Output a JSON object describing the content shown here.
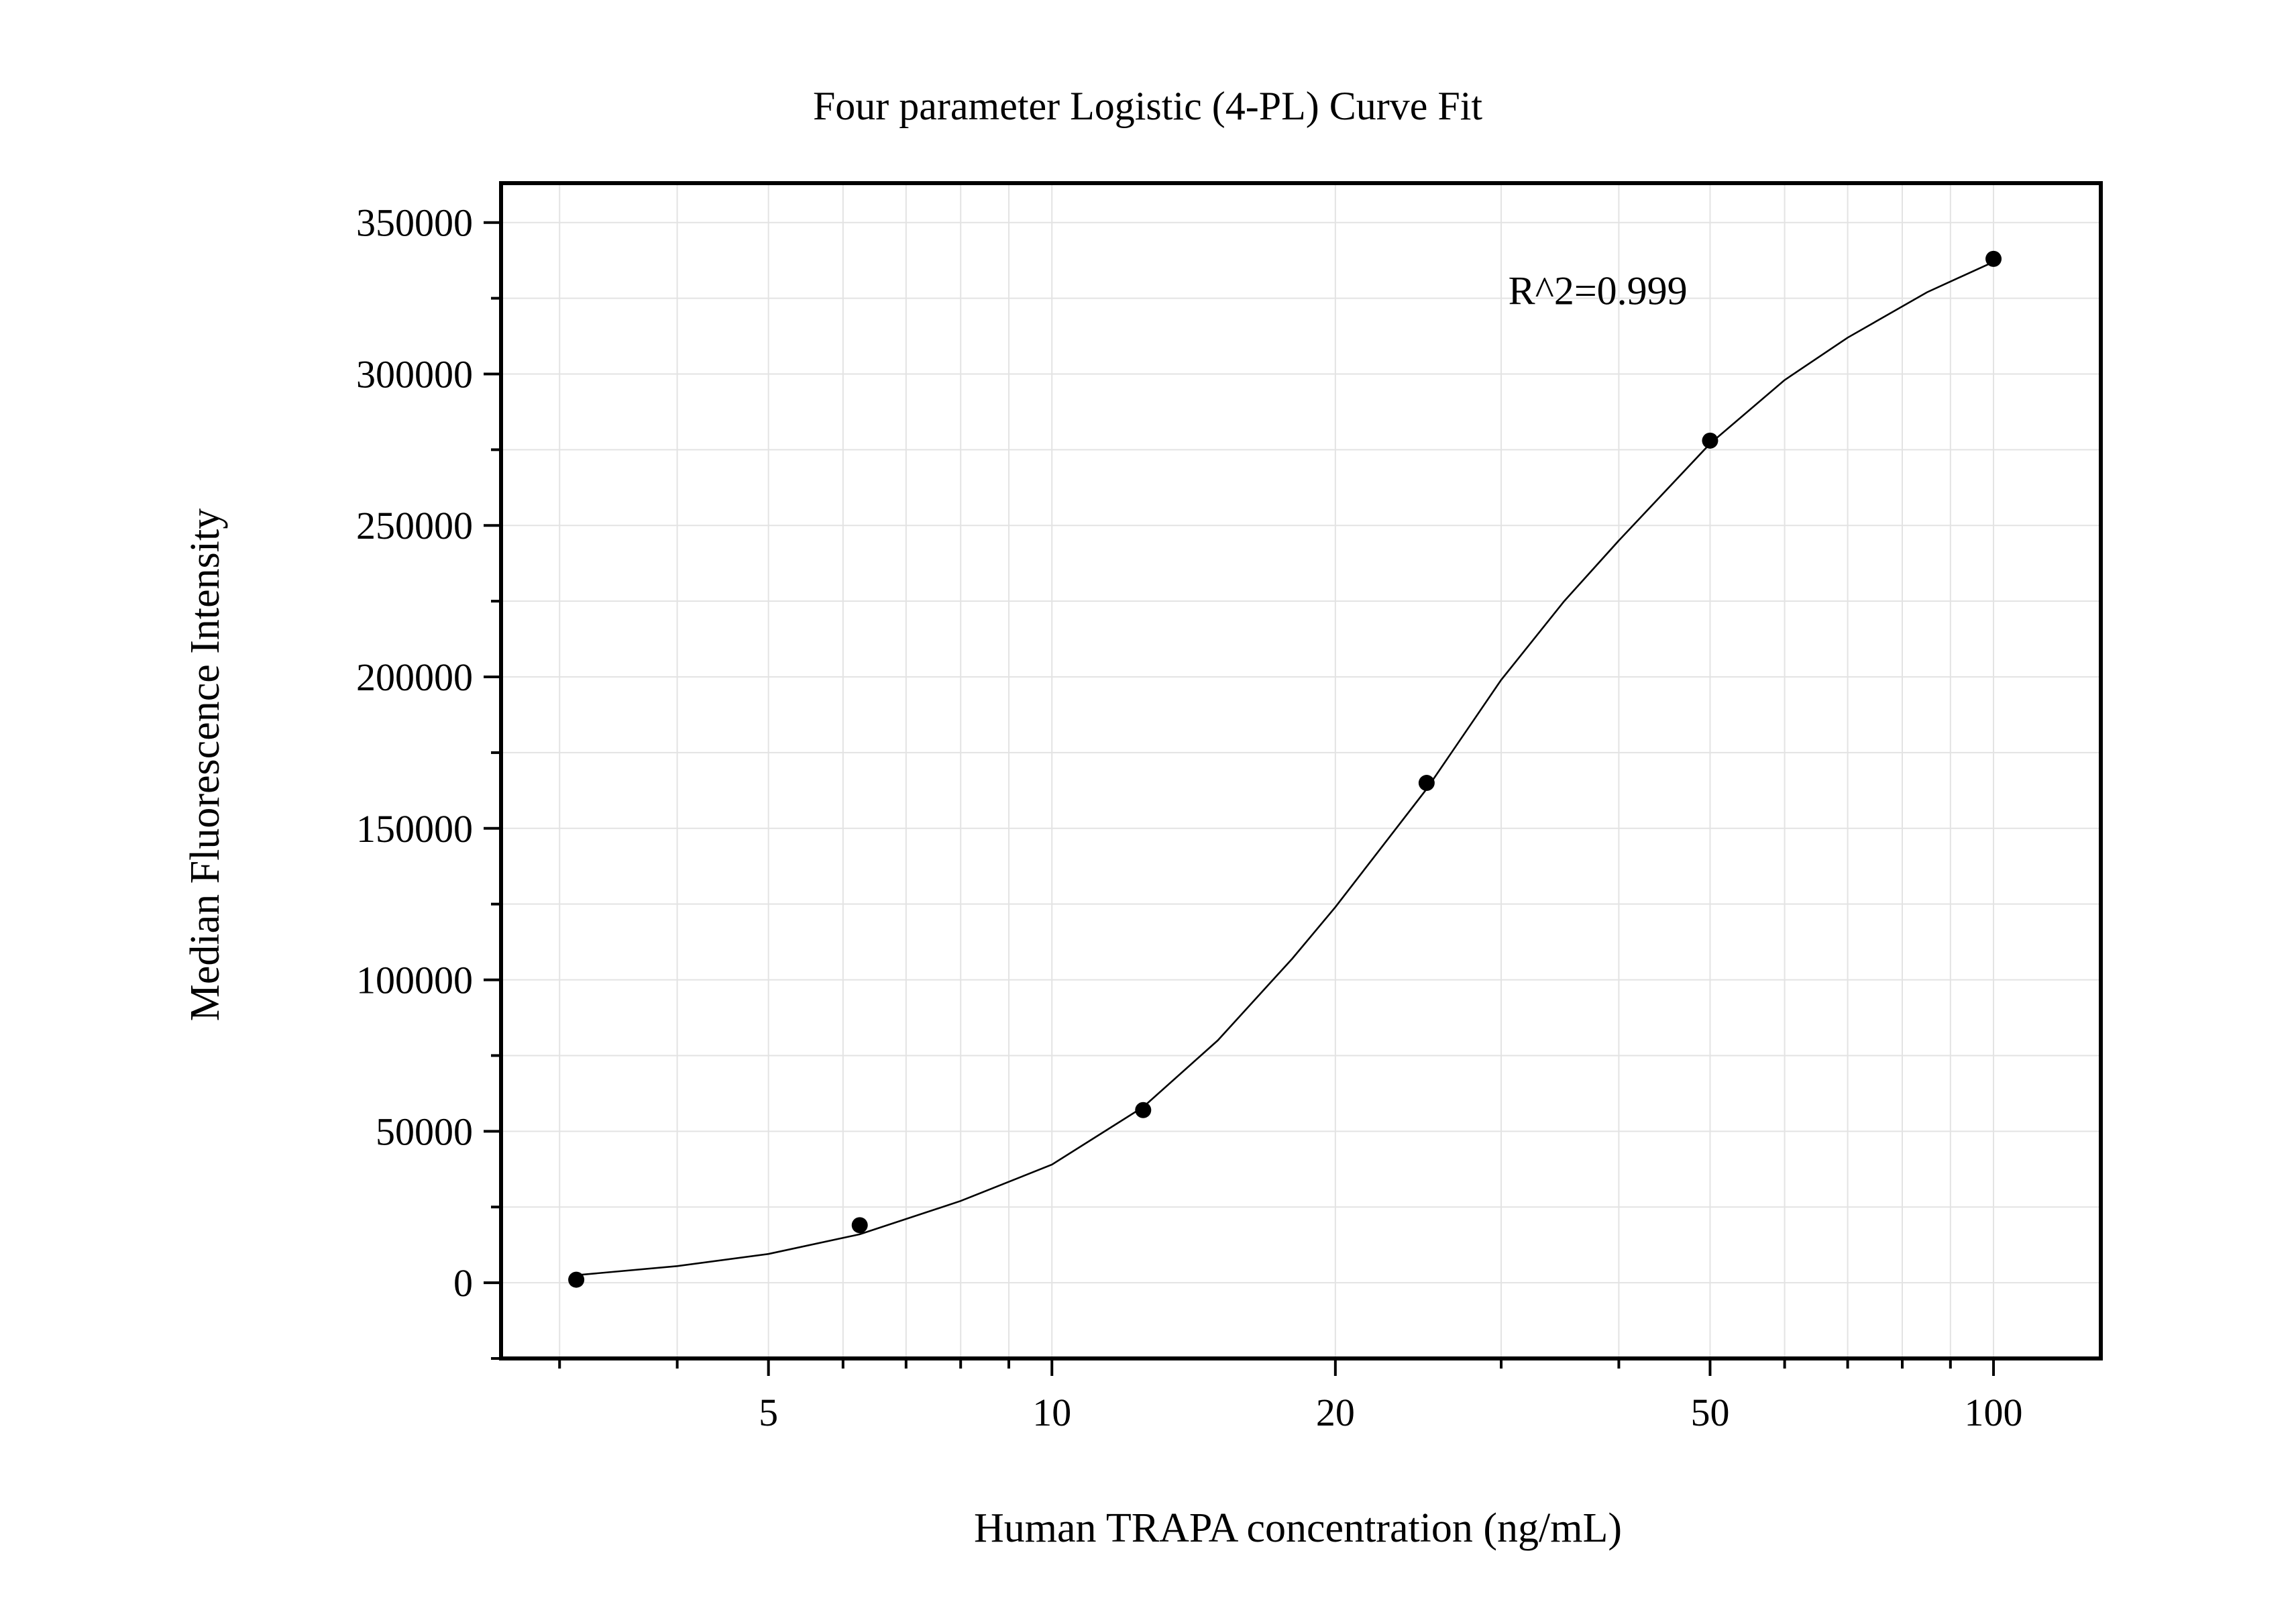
{
  "chart_data": {
    "type": "scatter",
    "title": "Four parameter Logistic (4-PL) Curve Fit",
    "xlabel": "Human TRAPA concentration (ng/mL)",
    "ylabel": "Median Fluorescence Intensity",
    "x_scale": "log",
    "xlim": [
      2.6,
      130
    ],
    "ylim": [
      -25000,
      363000
    ],
    "x_ticks": [
      5,
      10,
      20,
      50,
      100
    ],
    "x_tick_labels": [
      "5",
      "10",
      "20",
      "50",
      "100"
    ],
    "y_ticks": [
      0,
      50000,
      100000,
      150000,
      200000,
      250000,
      300000,
      350000
    ],
    "y_tick_labels": [
      "0",
      "50000",
      "100000",
      "150000",
      "200000",
      "250000",
      "300000",
      "350000"
    ],
    "grid": true,
    "series": [
      {
        "x": [
          3.125,
          6.25,
          12.5,
          25,
          50,
          100
        ],
        "y": [
          1000,
          19000,
          57000,
          165000,
          278000,
          338000
        ]
      }
    ],
    "fit": {
      "model": "4-PL",
      "x_range": [
        3.125,
        100
      ],
      "points": [
        [
          3.125,
          2500
        ],
        [
          4,
          5500
        ],
        [
          5,
          9500
        ],
        [
          6.25,
          16000
        ],
        [
          8,
          27000
        ],
        [
          10,
          39000
        ],
        [
          12.5,
          58000
        ],
        [
          15,
          80000
        ],
        [
          18,
          107000
        ],
        [
          20,
          124000
        ],
        [
          25,
          163000
        ],
        [
          30,
          199000
        ],
        [
          35,
          225000
        ],
        [
          40,
          245000
        ],
        [
          50,
          277000
        ],
        [
          60,
          298000
        ],
        [
          70,
          312000
        ],
        [
          85,
          327000
        ],
        [
          100,
          337000
        ]
      ]
    },
    "annotations": [
      {
        "text": "R^2=0.999"
      }
    ]
  }
}
